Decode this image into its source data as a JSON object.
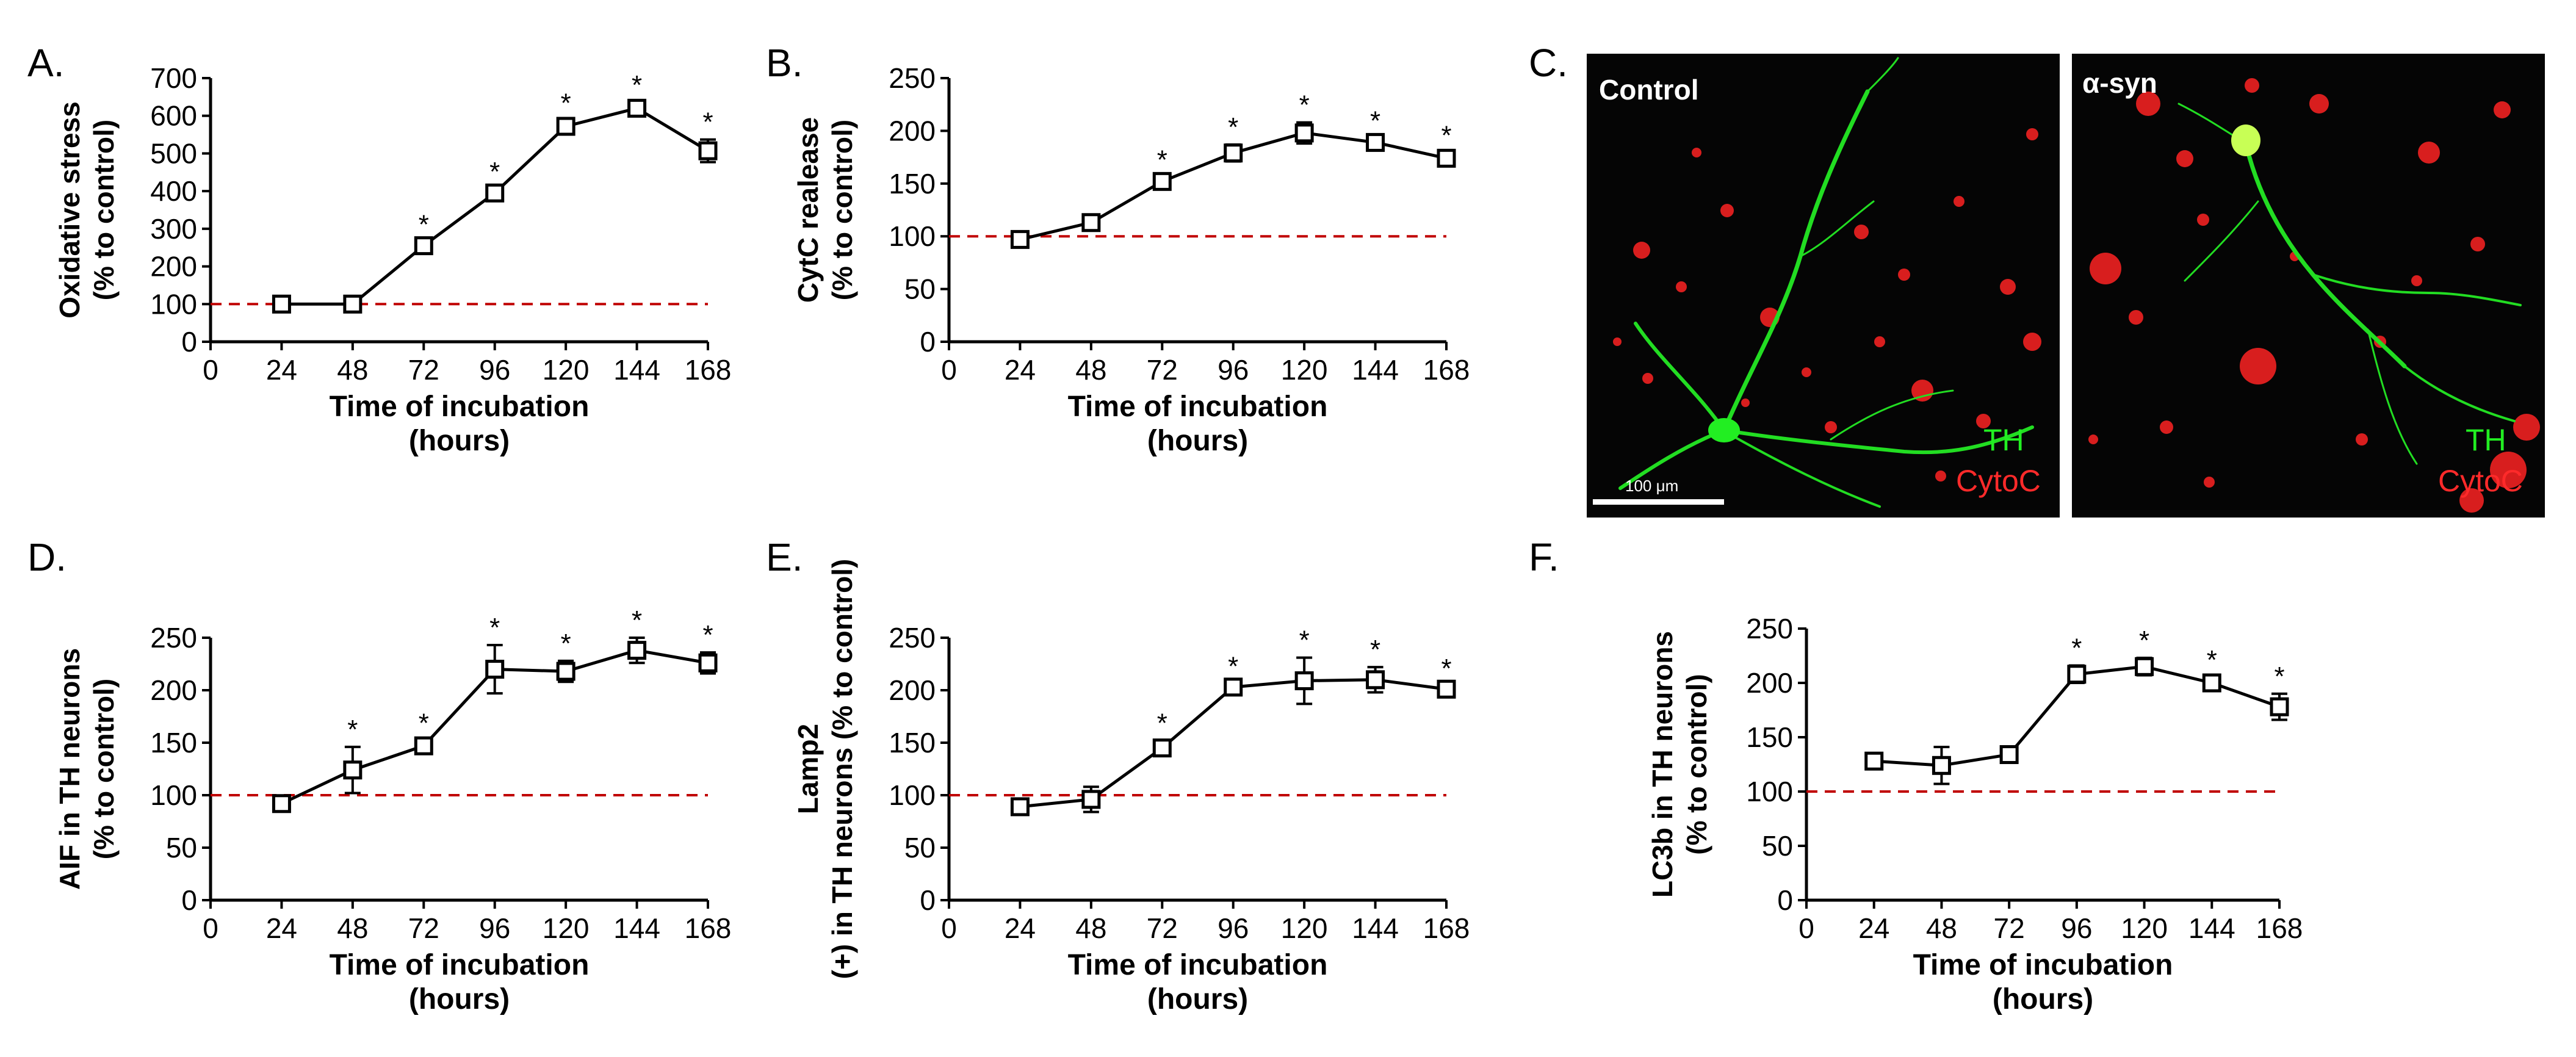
{
  "panels": {
    "a": "A.",
    "b": "B.",
    "c": "C.",
    "d": "D.",
    "e": "E.",
    "f": "F."
  },
  "colors": {
    "line": "#000000",
    "baseline": "#c00000",
    "micro_bg": "#050505",
    "neuron": "#22dd22",
    "cytoc": "#e02020",
    "label_green": "#22ee22",
    "label_red": "#ff2a2a",
    "label_white": "#ffffff"
  },
  "micrographs": {
    "left_title": "Control",
    "right_title": "α-syn",
    "marker_th": "TH",
    "marker_cytoc": "CytoC",
    "scale_bar": "100 μm"
  },
  "chart_data": [
    {
      "id": "A",
      "type": "line",
      "title": "",
      "xlabel": "Time of incubation (hours)",
      "ylabel": "Oxidative stress (% to control)",
      "xlim": [
        0,
        168
      ],
      "ylim": [
        0,
        700
      ],
      "xticks": [
        0,
        24,
        48,
        72,
        96,
        120,
        144,
        168
      ],
      "yticks": [
        0,
        100,
        200,
        300,
        400,
        500,
        600,
        700
      ],
      "baseline": 100,
      "x": [
        24,
        48,
        72,
        96,
        120,
        144,
        168
      ],
      "y": [
        100,
        100,
        255,
        395,
        572,
        620,
        507
      ],
      "err": [
        8,
        8,
        10,
        10,
        15,
        15,
        30
      ],
      "sig": [
        false,
        false,
        true,
        true,
        true,
        true,
        true
      ]
    },
    {
      "id": "B",
      "type": "line",
      "title": "",
      "xlabel": "Time of incubation (hours)",
      "ylabel": "CytC realease (% to control)",
      "xlim": [
        0,
        168
      ],
      "ylim": [
        0,
        250
      ],
      "xticks": [
        0,
        24,
        48,
        72,
        96,
        120,
        144,
        168
      ],
      "yticks": [
        0,
        50,
        100,
        150,
        200,
        250
      ],
      "baseline": 100,
      "x": [
        24,
        48,
        72,
        96,
        120,
        144,
        168
      ],
      "y": [
        97,
        113,
        152,
        179,
        198,
        189,
        174
      ],
      "err": [
        3,
        3,
        4,
        8,
        10,
        4,
        5
      ],
      "sig": [
        false,
        false,
        true,
        true,
        true,
        true,
        true
      ]
    },
    {
      "id": "D",
      "type": "line",
      "title": "",
      "xlabel": "Time of incubation (hours)",
      "ylabel": "AIF in TH neurons (% to control)",
      "xlim": [
        0,
        168
      ],
      "ylim": [
        0,
        250
      ],
      "xticks": [
        0,
        24,
        48,
        72,
        96,
        120,
        144,
        168
      ],
      "yticks": [
        0,
        50,
        100,
        150,
        200,
        250
      ],
      "baseline": 100,
      "x": [
        24,
        48,
        72,
        96,
        120,
        144,
        168
      ],
      "y": [
        92,
        124,
        147,
        220,
        218,
        238,
        226
      ],
      "err": [
        4,
        22,
        5,
        23,
        10,
        12,
        10
      ],
      "sig": [
        false,
        true,
        true,
        true,
        true,
        true,
        true
      ]
    },
    {
      "id": "E",
      "type": "line",
      "title": "",
      "xlabel": "Time of incubation (hours)",
      "ylabel": "Lamp2(+) in TH neurons (% to control)",
      "xlim": [
        0,
        168
      ],
      "ylim": [
        0,
        250
      ],
      "xticks": [
        0,
        24,
        48,
        72,
        96,
        120,
        144,
        168
      ],
      "yticks": [
        0,
        50,
        100,
        150,
        200,
        250
      ],
      "baseline": 100,
      "x": [
        24,
        48,
        72,
        96,
        120,
        144,
        168
      ],
      "y": [
        89,
        96,
        145,
        203,
        209,
        210,
        201
      ],
      "err": [
        3,
        12,
        7,
        3,
        22,
        12,
        3
      ],
      "sig": [
        false,
        false,
        true,
        true,
        true,
        true,
        true
      ]
    },
    {
      "id": "F",
      "type": "line",
      "title": "",
      "xlabel": "Time of incubation (hours)",
      "ylabel": "LC3b in TH neurons (% to control)",
      "xlim": [
        0,
        168
      ],
      "ylim": [
        0,
        250
      ],
      "xticks": [
        0,
        24,
        48,
        72,
        96,
        120,
        144,
        168
      ],
      "yticks": [
        0,
        50,
        100,
        150,
        200,
        250
      ],
      "baseline": 100,
      "x": [
        24,
        48,
        72,
        96,
        120,
        144,
        168
      ],
      "y": [
        128,
        124,
        134,
        208,
        215,
        200,
        178
      ],
      "err": [
        7,
        17,
        5,
        8,
        8,
        5,
        12
      ],
      "sig": [
        false,
        false,
        false,
        true,
        true,
        true,
        true
      ]
    }
  ]
}
